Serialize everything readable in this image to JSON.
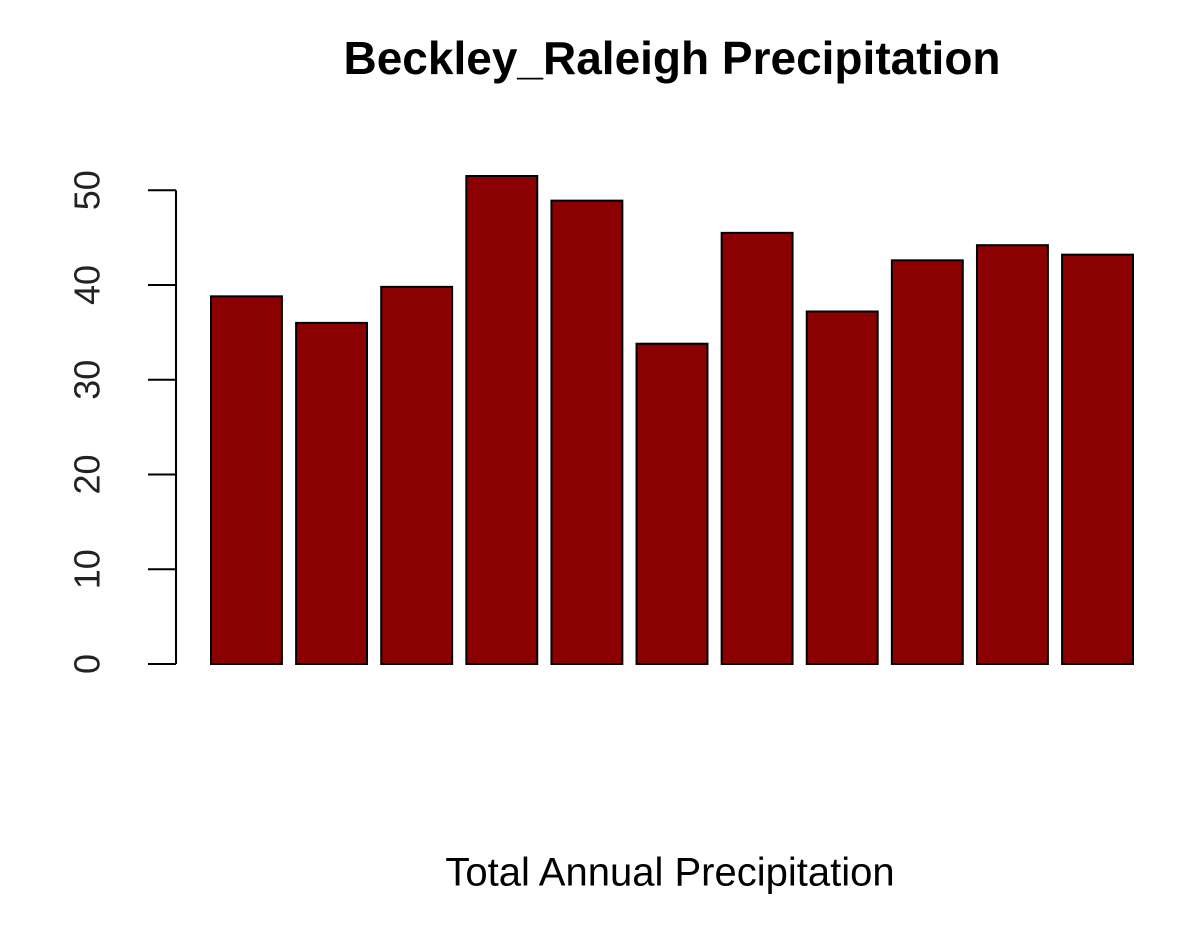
{
  "chart_data": {
    "type": "bar",
    "title": "Beckley_Raleigh Precipitation",
    "x_label": "Total Annual Precipitation",
    "values": [
      38.8,
      36.0,
      39.8,
      51.5,
      48.9,
      33.8,
      45.5,
      37.2,
      42.6,
      44.2,
      43.2
    ],
    "color": "#8b0000",
    "ylim": [
      0,
      51.5
    ],
    "yticks": [
      0,
      10,
      20,
      30,
      40,
      50
    ],
    "grid": false
  }
}
